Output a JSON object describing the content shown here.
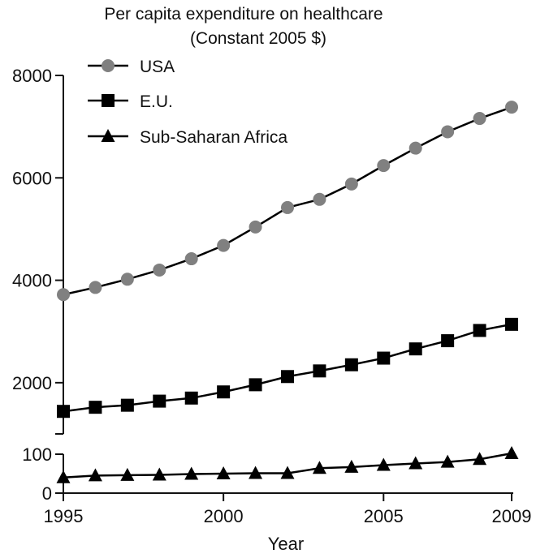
{
  "chart_data": {
    "type": "line",
    "title": "Per capita expenditure on healthcare",
    "subtitle": "(Constant 2005 $)",
    "xlabel": "Year",
    "ylabel": "",
    "x": [
      1995,
      1996,
      1997,
      1998,
      1999,
      2000,
      2001,
      2002,
      2003,
      2004,
      2005,
      2006,
      2007,
      2008,
      2009
    ],
    "xlim": [
      1995,
      2009
    ],
    "x_ticks": [
      "1995",
      "2000",
      "2005",
      "2009"
    ],
    "y_axis_break": true,
    "upper_ylim": [
      1000,
      8000
    ],
    "upper_y_ticks": [
      "2000",
      "4000",
      "6000",
      "8000"
    ],
    "lower_ylim": [
      0,
      100
    ],
    "lower_y_ticks": [
      "0",
      "100"
    ],
    "legend_position": "top-left",
    "series": [
      {
        "name": "USA",
        "marker": "circle",
        "color": "#808080",
        "values": [
          3720,
          3860,
          4020,
          4200,
          4420,
          4680,
          5040,
          5420,
          5580,
          5880,
          6240,
          6580,
          6900,
          7160,
          7380
        ]
      },
      {
        "name": "E.U.",
        "marker": "square",
        "color": "#000000",
        "values": [
          1440,
          1520,
          1560,
          1640,
          1700,
          1820,
          1960,
          2120,
          2230,
          2350,
          2480,
          2660,
          2820,
          3020,
          3140
        ]
      },
      {
        "name": "Sub-Saharan Africa",
        "marker": "triangle",
        "color": "#000000",
        "values": [
          40,
          45,
          46,
          47,
          49,
          50,
          51,
          51,
          64,
          67,
          72,
          76,
          80,
          87,
          102
        ]
      }
    ]
  }
}
